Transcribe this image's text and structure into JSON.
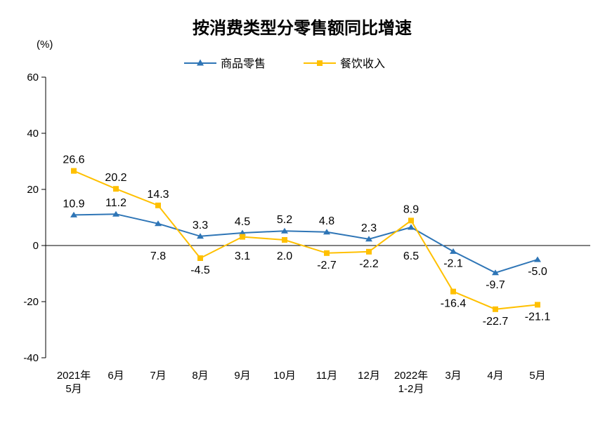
{
  "chart_data": {
    "type": "line",
    "title": "按消费类型分零售额同比增速",
    "ylabel": "(%)",
    "categories": [
      "2021年\n5月",
      "6月",
      "7月",
      "8月",
      "9月",
      "10月",
      "11月",
      "12月",
      "2022年\n1-2月",
      "3月",
      "4月",
      "5月"
    ],
    "series": [
      {
        "name": "商品零售",
        "color": "#2e75b6",
        "marker": "triangle",
        "values": [
          10.9,
          11.2,
          7.8,
          3.3,
          4.5,
          5.2,
          4.8,
          2.3,
          6.5,
          -2.1,
          -9.7,
          -5.0
        ],
        "label_side": [
          "above",
          "above",
          "below",
          "above",
          "above",
          "above",
          "above",
          "above",
          "below",
          "below",
          "below",
          "below"
        ]
      },
      {
        "name": "餐饮收入",
        "color": "#ffc000",
        "marker": "square",
        "values": [
          26.6,
          20.2,
          14.3,
          -4.5,
          3.1,
          2.0,
          -2.7,
          -2.2,
          8.9,
          -16.4,
          -22.7,
          -21.1
        ],
        "label_side": [
          "above",
          "above",
          "above",
          "below",
          "below",
          "below",
          "below",
          "below",
          "above",
          "below",
          "below",
          "below"
        ]
      }
    ],
    "ylim": [
      -40,
      60
    ],
    "yticks": [
      60,
      40,
      20,
      0,
      -20,
      -40
    ],
    "grid": false,
    "legend_position": "top"
  }
}
